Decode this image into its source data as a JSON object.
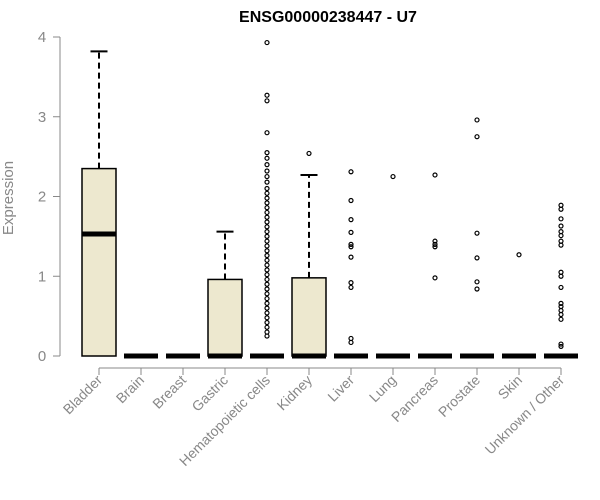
{
  "chart_data": {
    "type": "boxplot",
    "title": "ENSG00000238447 - U7",
    "xlabel": "",
    "ylabel": "Expression",
    "ylim": [
      0,
      4
    ],
    "yticks": [
      "0",
      "1",
      "2",
      "3",
      "4"
    ],
    "grid": false,
    "box_fill": "#ede8cf",
    "categories": [
      "Bladder",
      "Brain",
      "Breast",
      "Gastric",
      "Hematopoietic cells",
      "Kidney",
      "Liver",
      "Lung",
      "Pancreas",
      "Prostate",
      "Skin",
      "Unknown / Other"
    ],
    "boxes": [
      {
        "q1": 0,
        "median": 1.53,
        "q3": 2.35,
        "whisker_low": 0,
        "whisker_high": 3.82,
        "outliers": []
      },
      {
        "q1": 0,
        "median": 0,
        "q3": 0,
        "whisker_low": 0,
        "whisker_high": 0,
        "outliers": []
      },
      {
        "q1": 0,
        "median": 0,
        "q3": 0,
        "whisker_low": 0,
        "whisker_high": 0,
        "outliers": []
      },
      {
        "q1": 0,
        "median": 0,
        "q3": 0.96,
        "whisker_low": 0,
        "whisker_high": 1.56,
        "outliers": []
      },
      {
        "q1": 0,
        "median": 0,
        "q3": 0,
        "whisker_low": 0,
        "whisker_high": 0,
        "outliers": [
          3.93,
          3.27,
          3.2,
          2.8,
          2.55,
          2.48,
          2.4,
          2.32,
          2.25,
          2.18,
          2.1,
          2.04,
          1.98,
          1.92,
          1.86,
          1.8,
          1.74,
          1.68,
          1.62,
          1.56,
          1.5,
          1.44,
          1.38,
          1.32,
          1.26,
          1.2,
          1.14,
          1.08,
          1.02,
          0.96,
          0.9,
          0.84,
          0.78,
          0.72,
          0.66,
          0.6,
          0.54,
          0.48,
          0.42,
          0.36,
          0.3,
          0.25
        ]
      },
      {
        "q1": 0,
        "median": 0,
        "q3": 0.98,
        "whisker_low": 0,
        "whisker_high": 2.27,
        "outliers": [
          2.54
        ]
      },
      {
        "q1": 0,
        "median": 0,
        "q3": 0,
        "whisker_low": 0,
        "whisker_high": 0,
        "outliers": [
          2.31,
          1.95,
          1.71,
          1.55,
          1.4,
          1.37,
          1.24,
          0.92,
          0.86,
          0.22,
          0.17
        ]
      },
      {
        "q1": 0,
        "median": 0,
        "q3": 0,
        "whisker_low": 0,
        "whisker_high": 0,
        "outliers": [
          2.25
        ]
      },
      {
        "q1": 0,
        "median": 0,
        "q3": 0,
        "whisker_low": 0,
        "whisker_high": 0,
        "outliers": [
          2.27,
          1.44,
          1.4,
          1.37,
          0.98
        ]
      },
      {
        "q1": 0,
        "median": 0,
        "q3": 0,
        "whisker_low": 0,
        "whisker_high": 0,
        "outliers": [
          2.96,
          2.75,
          1.54,
          1.23,
          0.93,
          0.84
        ]
      },
      {
        "q1": 0,
        "median": 0,
        "q3": 0,
        "whisker_low": 0,
        "whisker_high": 0,
        "outliers": [
          1.27
        ]
      },
      {
        "q1": 0,
        "median": 0,
        "q3": 0,
        "whisker_low": 0,
        "whisker_high": 0,
        "outliers": [
          1.89,
          1.84,
          1.72,
          1.63,
          1.56,
          1.51,
          1.44,
          1.39,
          1.05,
          1.0,
          0.86,
          0.66,
          0.62,
          0.57,
          0.52,
          0.46,
          0.15,
          0.12
        ]
      }
    ]
  }
}
